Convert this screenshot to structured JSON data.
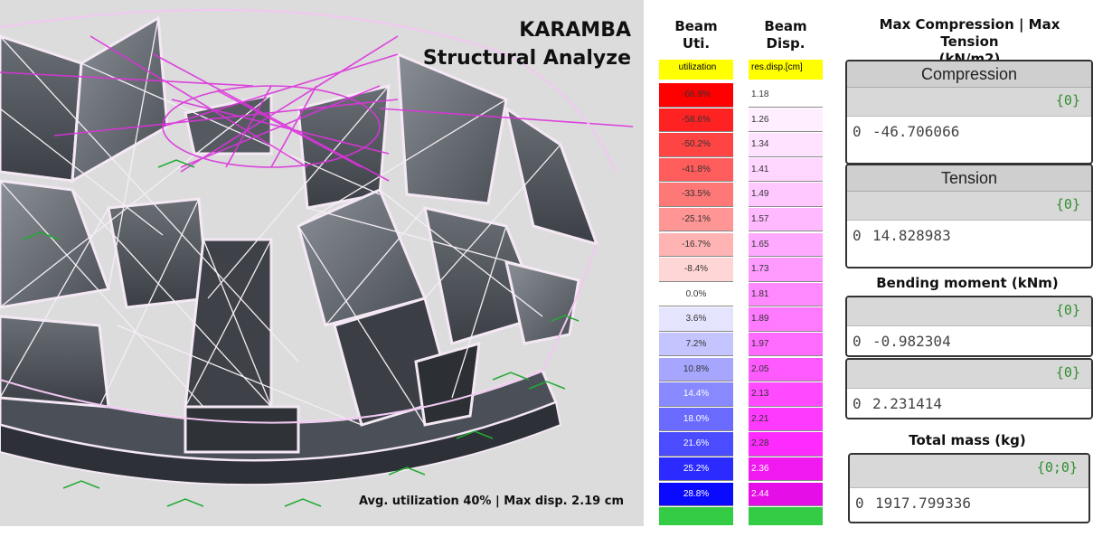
{
  "viewport": {
    "title_line1": "KARAMBA",
    "title_line2": "Structural Analyze",
    "status": "Avg. utilization 40% | Max disp. 2.19 cm"
  },
  "beam_util": {
    "heading_line1": "Beam",
    "heading_line2": "Uti.",
    "header": "utilization",
    "cells": [
      {
        "label": "-66.9%",
        "color": "#ff0000"
      },
      {
        "label": "-58.6%",
        "color": "#ff2222"
      },
      {
        "label": "-50.2%",
        "color": "#ff4444"
      },
      {
        "label": "-41.8%",
        "color": "#ff5c5c"
      },
      {
        "label": "-33.5%",
        "color": "#ff7878"
      },
      {
        "label": "-25.1%",
        "color": "#ff9595"
      },
      {
        "label": "-16.7%",
        "color": "#ffb3b3"
      },
      {
        "label": "-8.4%",
        "color": "#ffd6d6"
      },
      {
        "label": "0.0%",
        "color": "#ffffff"
      },
      {
        "label": "3.6%",
        "color": "#e4e4ff"
      },
      {
        "label": "7.2%",
        "color": "#c4c4ff"
      },
      {
        "label": "10.8%",
        "color": "#a6a6ff"
      },
      {
        "label": "14.4%",
        "color": "#8888ff"
      },
      {
        "label": "18.0%",
        "color": "#6a6aff"
      },
      {
        "label": "21.6%",
        "color": "#4b4bff"
      },
      {
        "label": "25.2%",
        "color": "#2b2bff"
      },
      {
        "label": "28.8%",
        "color": "#0a0aff"
      }
    ]
  },
  "beam_disp": {
    "heading_line1": "Beam",
    "heading_line2": "Disp.",
    "header": "res.disp.[cm]",
    "cells": [
      {
        "label": "1.18",
        "color": "#ffffff"
      },
      {
        "label": "1.26",
        "color": "#ffeeff"
      },
      {
        "label": "1.34",
        "color": "#ffe2ff"
      },
      {
        "label": "1.41",
        "color": "#ffd6ff"
      },
      {
        "label": "1.49",
        "color": "#ffc8ff"
      },
      {
        "label": "1.57",
        "color": "#ffbaff"
      },
      {
        "label": "1.65",
        "color": "#ffaaff"
      },
      {
        "label": "1.73",
        "color": "#ff9aff"
      },
      {
        "label": "1.81",
        "color": "#ff8aff"
      },
      {
        "label": "1.89",
        "color": "#ff7aff"
      },
      {
        "label": "1.97",
        "color": "#ff6aff"
      },
      {
        "label": "2.05",
        "color": "#ff5aff"
      },
      {
        "label": "2.13",
        "color": "#ff4aff"
      },
      {
        "label": "2.21",
        "color": "#ff3aff"
      },
      {
        "label": "2.28",
        "color": "#ff2aff"
      },
      {
        "label": "2.36",
        "color": "#f01af0"
      },
      {
        "label": "2.44",
        "color": "#e60ee6"
      }
    ]
  },
  "max_section": {
    "title_line1": "Max Compression | Max Tension",
    "title_line2": "(kN/m2)"
  },
  "compression_panel": {
    "title": "Compression",
    "path": "{0}",
    "index": "0",
    "value": "-46.706066"
  },
  "tension_panel": {
    "title": "Tension",
    "path": "{0}",
    "index": "0",
    "value": "14.828983"
  },
  "bending_section": {
    "title": "Bending moment (kNm)"
  },
  "bending_panel_1": {
    "path": "{0}",
    "index": "0",
    "value": "-0.982304"
  },
  "bending_panel_2": {
    "path": "{0}",
    "index": "0",
    "value": "2.231414"
  },
  "mass_section": {
    "title": "Total mass (kg)"
  },
  "mass_panel": {
    "path": "{0;0}",
    "index": "0",
    "value": "1917.799336"
  }
}
